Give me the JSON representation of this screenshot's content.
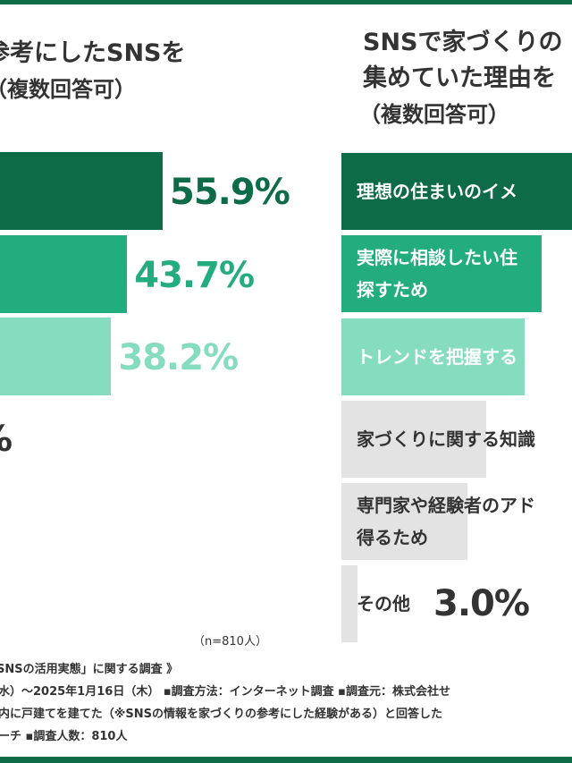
{
  "left_chart": {
    "title_line1": "参考にしたSNSを",
    "title_line2": "（複数回答可）",
    "chart_data": {
      "type": "bar",
      "orientation": "horizontal",
      "values": [
        55.9,
        43.7,
        38.2
      ],
      "value_labels": [
        "55.9%",
        "43.7%",
        "38.2%"
      ],
      "partial_value_label": "%",
      "colors": [
        "#0e6b47",
        "#23ad7e",
        "#86dcbe"
      ]
    }
  },
  "right_chart": {
    "title_line1": "SNSで家づくりの",
    "title_line2": "集めていた理由を",
    "title_line3": "（複数回答可）",
    "chart_data": {
      "type": "bar",
      "orientation": "horizontal",
      "categories": [
        "理想の住まいのイメ",
        "実際に相談したい住",
        "トレンドを把握する",
        "家づくりに関する知識",
        "専門家や経験者のアド",
        "その他"
      ],
      "category_line2": [
        "",
        "探すため",
        "",
        "",
        "得るため",
        ""
      ],
      "values": [
        null,
        null,
        null,
        null,
        null,
        3.0
      ],
      "value_labels": [
        "",
        "",
        "",
        "",
        "",
        "3.0%"
      ],
      "colors": [
        "#0e6b47",
        "#23ad7e",
        "#86dcbe",
        "#e3e3e3",
        "#e3e3e3",
        "#e3e3e3"
      ],
      "label_colors": [
        "#ffffff",
        "#ffffff",
        "#ffffff",
        "#333333",
        "#333333",
        "#333333"
      ]
    }
  },
  "sample_note": "（n=810人）",
  "footer": {
    "line1": "SNSの活用実態」に関する調査 》",
    "line2": "水）～2025年1月16日（木）  ▪調査方法：インターネット調査  ▪調査元：株式会社せ",
    "line3": "内に戸建てを建てた（※SNSの情報を家づくりの参考にした経験がある）と回答した",
    "line4": "ーチ        ▪調査人数：810人"
  }
}
